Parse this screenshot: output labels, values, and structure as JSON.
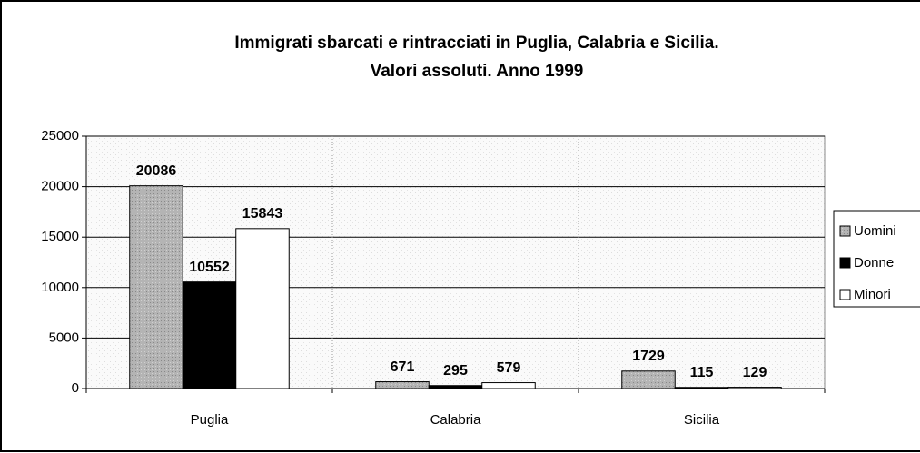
{
  "chart_data": {
    "type": "bar",
    "title": [
      "Immigrati sbarcati e rintracciati in Puglia, Calabria e Sicilia.",
      "Valori assoluti. Anno 1999"
    ],
    "categories": [
      "Puglia",
      "Calabria",
      "Sicilia"
    ],
    "series": [
      {
        "name": "Uomini",
        "color": "#b4b4b4",
        "values": [
          20086,
          671,
          1729
        ]
      },
      {
        "name": "Donne",
        "color": "#000000",
        "values": [
          10552,
          295,
          115
        ]
      },
      {
        "name": "Minori",
        "color": "#ffffff",
        "values": [
          15843,
          579,
          129
        ]
      }
    ],
    "ylim": [
      0,
      25000
    ],
    "yticks": [
      0,
      5000,
      10000,
      15000,
      20000,
      25000
    ],
    "grid": true,
    "legend": "right"
  }
}
